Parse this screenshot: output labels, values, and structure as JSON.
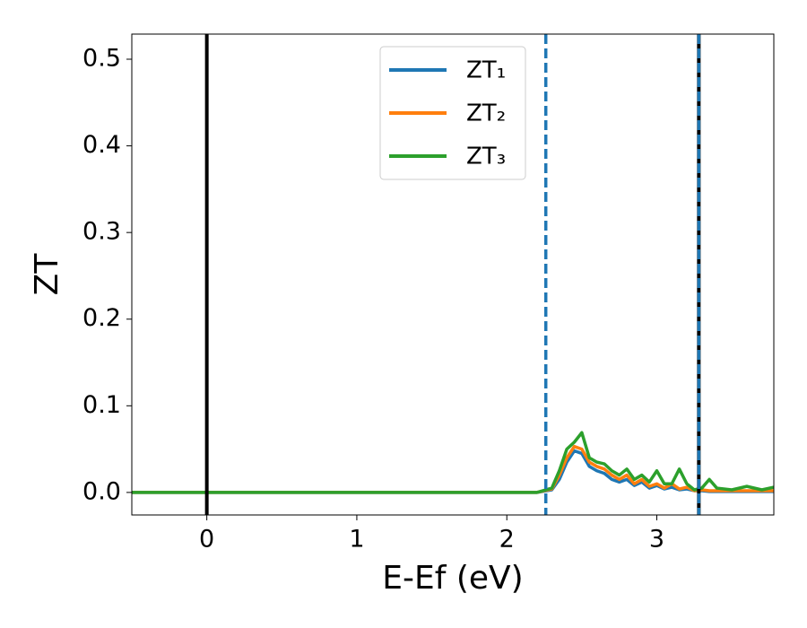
{
  "chart_data": {
    "type": "line",
    "xlabel": "E-Ef (eV)",
    "ylabel": "ZT",
    "x": [
      -0.5,
      2.0,
      2.2,
      2.3,
      2.35,
      2.4,
      2.45,
      2.5,
      2.55,
      2.6,
      2.65,
      2.7,
      2.75,
      2.8,
      2.85,
      2.9,
      2.95,
      3.0,
      3.05,
      3.1,
      3.15,
      3.2,
      3.25,
      3.3,
      3.35,
      3.4,
      3.5,
      3.6,
      3.7,
      3.78
    ],
    "series": [
      {
        "name": "ZT₁",
        "color": "#1f77b4",
        "values": [
          0,
          0,
          0,
          0.003,
          0.015,
          0.035,
          0.048,
          0.045,
          0.03,
          0.025,
          0.022,
          0.015,
          0.012,
          0.015,
          0.008,
          0.012,
          0.005,
          0.008,
          0.004,
          0.006,
          0.003,
          0.004,
          0.002,
          0.002,
          0.001,
          0.001,
          0.001,
          0.001,
          0.001,
          0.001
        ]
      },
      {
        "name": "ZT₂",
        "color": "#ff7f0e",
        "values": [
          0,
          0,
          0,
          0.004,
          0.02,
          0.04,
          0.053,
          0.05,
          0.035,
          0.03,
          0.027,
          0.02,
          0.015,
          0.02,
          0.01,
          0.015,
          0.007,
          0.01,
          0.005,
          0.01,
          0.004,
          0.006,
          0.002,
          0.003,
          0.002,
          0.002,
          0.002,
          0.002,
          0.002,
          0.002
        ]
      },
      {
        "name": "ZT₃",
        "color": "#2ca02c",
        "values": [
          0,
          0,
          0,
          0.005,
          0.025,
          0.05,
          0.058,
          0.069,
          0.04,
          0.035,
          0.033,
          0.025,
          0.02,
          0.027,
          0.015,
          0.02,
          0.012,
          0.025,
          0.01,
          0.01,
          0.027,
          0.01,
          0.003,
          0.005,
          0.015,
          0.005,
          0.003,
          0.007,
          0.003,
          0.006
        ]
      }
    ],
    "vlines": [
      {
        "value": 0,
        "color": "#000000",
        "style": "solid"
      },
      {
        "value": 2.26,
        "color": "#1f77b4",
        "style": "dashed"
      },
      {
        "value": 3.28,
        "color": "#000000",
        "style": "solid"
      },
      {
        "value": 3.28,
        "color": "#1f77b4",
        "style": "dashed"
      }
    ],
    "xlim": [
      -0.5,
      3.78
    ],
    "ylim": [
      -0.026,
      0.529
    ],
    "xticks": [
      0,
      1,
      2,
      3
    ],
    "yticks": [
      {
        "value": 0,
        "label": "0.0"
      },
      0.1,
      0.2,
      0.3,
      0.4,
      0.5
    ],
    "legend": "upper center",
    "grid": false
  }
}
